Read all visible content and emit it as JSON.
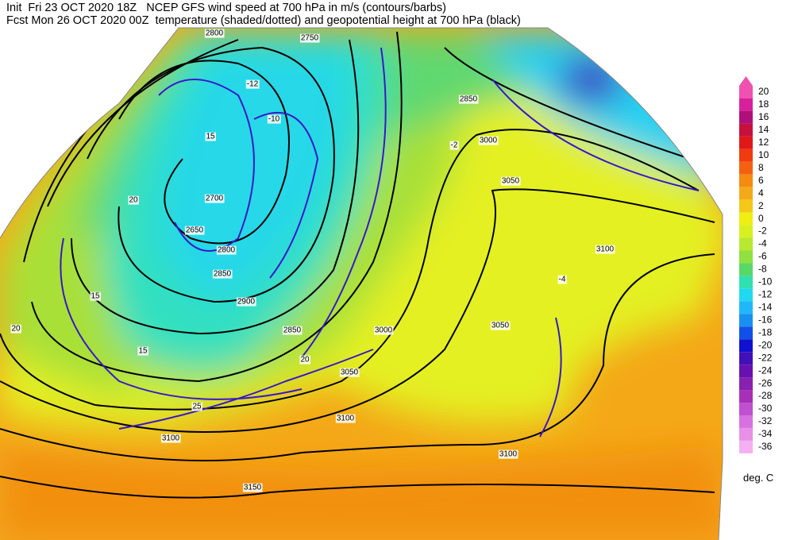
{
  "header": {
    "line1": "Init  Fri 23 OCT 2020 18Z   NCEP GFS wind speed at 700 hPa in m/s (contours/barbs)",
    "line2": "Fcst Mon 26 OCT 2020 00Z  temperature (shaded/dotted) and geopotential height at 700 hPa (black)"
  },
  "colorbar": {
    "levels": [
      20,
      18,
      16,
      14,
      12,
      10,
      8,
      6,
      4,
      2,
      0,
      -2,
      -4,
      -6,
      -8,
      -10,
      -12,
      -14,
      -16,
      -18,
      -20,
      -22,
      -24,
      -26,
      -28,
      -30,
      -32,
      -34,
      -36
    ],
    "colors": [
      "#f050b0",
      "#d8209a",
      "#b0107a",
      "#c8103c",
      "#e01818",
      "#f03a10",
      "#f46010",
      "#f48a10",
      "#f4aa18",
      "#f4c818",
      "#eeee10",
      "#d8f020",
      "#b8e830",
      "#90e040",
      "#58d868",
      "#30e0b0",
      "#20d8f0",
      "#20b8f8",
      "#1890f0",
      "#1050e8",
      "#1010d0",
      "#4010b8",
      "#6810b0",
      "#8820b0",
      "#a830b8",
      "#c050d0",
      "#d870e0",
      "#e890e8",
      "#f4b0f0"
    ],
    "unit": "deg. C"
  },
  "map": {
    "labels": [
      "2800",
      "2750",
      "-12",
      "-10",
      "15",
      "2850",
      "3000",
      "3050",
      "2700",
      "2650",
      "2800",
      "2850",
      "2900",
      "20",
      "15",
      "3100",
      "3050",
      "3000",
      "2850",
      "3050",
      "3100",
      "3100",
      "3100",
      "3150",
      "20",
      "25",
      "-2",
      "-4",
      "15",
      "20"
    ]
  }
}
